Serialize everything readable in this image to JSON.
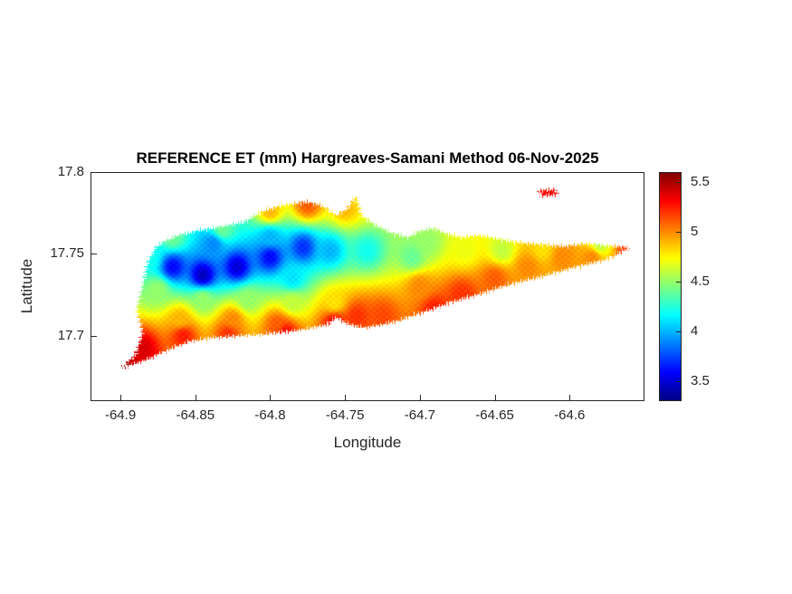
{
  "figure": {
    "title": "REFERENCE ET (mm) Hargreaves-Samani Method  06-Nov-2025",
    "xlabel": "Longitude",
    "ylabel": "Latitude",
    "background": "#ffffff"
  },
  "chart_data": {
    "type": "heatmap",
    "title": "REFERENCE ET (mm) Hargreaves-Samani Method  06-Nov-2025",
    "xlabel": "Longitude",
    "ylabel": "Latitude",
    "xlim": [
      -64.92,
      -64.55
    ],
    "ylim": [
      17.66,
      17.8
    ],
    "x_ticks": [
      {
        "value": -64.9,
        "label": "-64.9"
      },
      {
        "value": -64.85,
        "label": "-64.85"
      },
      {
        "value": -64.8,
        "label": "-64.8"
      },
      {
        "value": -64.75,
        "label": "-64.75"
      },
      {
        "value": -64.7,
        "label": "-64.7"
      },
      {
        "value": -64.65,
        "label": "-64.65"
      },
      {
        "value": -64.6,
        "label": "-64.6"
      }
    ],
    "y_ticks": [
      {
        "value": 17.7,
        "label": "17.7"
      },
      {
        "value": 17.75,
        "label": "17.75"
      },
      {
        "value": 17.8,
        "label": "17.8"
      }
    ],
    "colorbar": {
      "min": 3.3,
      "max": 5.6,
      "ticks": [
        {
          "value": 3.5,
          "label": "3.5"
        },
        {
          "value": 4,
          "label": "4"
        },
        {
          "value": 4.5,
          "label": "4.5"
        },
        {
          "value": 5,
          "label": "5"
        },
        {
          "value": 5.5,
          "label": "5.5"
        }
      ]
    },
    "colormap": {
      "name": "jet",
      "stops": [
        [
          0,
          "#000080"
        ],
        [
          0.125,
          "#0000ff"
        ],
        [
          0.375,
          "#00ffff"
        ],
        [
          0.625,
          "#ffff00"
        ],
        [
          0.875,
          "#ff0000"
        ],
        [
          1,
          "#800000"
        ]
      ]
    },
    "island_polygon": [
      [
        -64.9,
        17.68
      ],
      [
        -64.89,
        17.688
      ],
      [
        -64.885,
        17.7015
      ],
      [
        -64.889,
        17.716
      ],
      [
        -64.885,
        17.731
      ],
      [
        -64.882,
        17.7447
      ],
      [
        -64.876,
        17.7546
      ],
      [
        -64.866,
        17.76
      ],
      [
        -64.85,
        17.764
      ],
      [
        -64.832,
        17.7668
      ],
      [
        -64.817,
        17.7696
      ],
      [
        -64.805,
        17.7762
      ],
      [
        -64.79,
        17.78
      ],
      [
        -64.775,
        17.7817
      ],
      [
        -64.764,
        17.779
      ],
      [
        -64.756,
        17.7734
      ],
      [
        -64.748,
        17.7779
      ],
      [
        -64.743,
        17.7856
      ],
      [
        -64.739,
        17.7734
      ],
      [
        -64.73,
        17.7679
      ],
      [
        -64.719,
        17.7629
      ],
      [
        -64.708,
        17.76
      ],
      [
        -64.701,
        17.7635
      ],
      [
        -64.691,
        17.7657
      ],
      [
        -64.683,
        17.7624
      ],
      [
        -64.672,
        17.76
      ],
      [
        -64.66,
        17.7613
      ],
      [
        -64.647,
        17.759
      ],
      [
        -64.633,
        17.7568
      ],
      [
        -64.618,
        17.7557
      ],
      [
        -64.603,
        17.7546
      ],
      [
        -64.589,
        17.7563
      ],
      [
        -64.577,
        17.7552
      ],
      [
        -64.56,
        17.754
      ],
      [
        -64.574,
        17.7469
      ],
      [
        -64.587,
        17.7441
      ],
      [
        -64.603,
        17.7402
      ],
      [
        -64.618,
        17.7364
      ],
      [
        -64.633,
        17.733
      ],
      [
        -64.648,
        17.7292
      ],
      [
        -64.663,
        17.7247
      ],
      [
        -64.678,
        17.7209
      ],
      [
        -64.691,
        17.7164
      ],
      [
        -64.704,
        17.7126
      ],
      [
        -64.714,
        17.7092
      ],
      [
        -64.727,
        17.7065
      ],
      [
        -64.737,
        17.7048
      ],
      [
        -64.748,
        17.707
      ],
      [
        -64.756,
        17.7115
      ],
      [
        -64.761,
        17.707
      ],
      [
        -64.772,
        17.7048
      ],
      [
        -64.787,
        17.7026
      ],
      [
        -64.805,
        17.7009
      ],
      [
        -64.823,
        17.6998
      ],
      [
        -64.84,
        17.6987
      ],
      [
        -64.854,
        17.6965
      ],
      [
        -64.867,
        17.6921
      ],
      [
        -64.881,
        17.686
      ]
    ],
    "islets": [
      [
        [
          -64.621,
          17.7885
        ],
        [
          -64.61,
          17.7893
        ],
        [
          -64.607,
          17.7863
        ],
        [
          -64.619,
          17.7853
        ]
      ]
    ],
    "samples": [
      [
        -64.865,
        17.742,
        3.6
      ],
      [
        -64.845,
        17.737,
        3.45
      ],
      [
        -64.822,
        17.742,
        3.5
      ],
      [
        -64.8,
        17.748,
        3.6
      ],
      [
        -64.778,
        17.754,
        3.7
      ],
      [
        -64.838,
        17.756,
        3.9
      ],
      [
        -64.8,
        17.76,
        4.0
      ],
      [
        -64.88,
        17.748,
        4.2
      ],
      [
        -64.785,
        17.735,
        4.1
      ],
      [
        -64.76,
        17.752,
        4.0
      ],
      [
        -64.735,
        17.752,
        4.2
      ],
      [
        -64.705,
        17.748,
        4.4
      ],
      [
        -64.865,
        17.76,
        4.4
      ],
      [
        -64.832,
        17.765,
        4.4
      ],
      [
        -64.8,
        17.776,
        4.9
      ],
      [
        -64.775,
        17.78,
        5.1
      ],
      [
        -64.75,
        17.778,
        4.9
      ],
      [
        -64.74,
        17.786,
        4.8
      ],
      [
        -64.875,
        17.728,
        4.5
      ],
      [
        -64.845,
        17.722,
        4.5
      ],
      [
        -64.815,
        17.722,
        4.5
      ],
      [
        -64.785,
        17.72,
        4.6
      ],
      [
        -64.757,
        17.72,
        4.8
      ],
      [
        -64.86,
        17.71,
        4.9
      ],
      [
        -64.825,
        17.71,
        5.0
      ],
      [
        -64.795,
        17.707,
        5.1
      ],
      [
        -64.885,
        17.692,
        5.4
      ],
      [
        -64.858,
        17.7,
        5.25
      ],
      [
        -64.828,
        17.701,
        5.2
      ],
      [
        -64.79,
        17.702,
        5.3
      ],
      [
        -64.902,
        17.681,
        5.55
      ],
      [
        -64.757,
        17.708,
        5.3
      ],
      [
        -64.742,
        17.712,
        5.2
      ],
      [
        -64.725,
        17.712,
        5.15
      ],
      [
        -64.7,
        17.73,
        5.0
      ],
      [
        -64.69,
        17.716,
        5.25
      ],
      [
        -64.672,
        17.725,
        5.2
      ],
      [
        -64.65,
        17.735,
        5.1
      ],
      [
        -64.628,
        17.742,
        5.0
      ],
      [
        -64.605,
        17.748,
        5.0
      ],
      [
        -64.585,
        17.748,
        5.0
      ],
      [
        -64.56,
        17.753,
        5.2
      ],
      [
        -64.695,
        17.757,
        4.5
      ],
      [
        -64.67,
        17.752,
        4.7
      ],
      [
        -64.645,
        17.752,
        4.6
      ],
      [
        -64.58,
        17.7555,
        4.6
      ],
      [
        -64.618,
        17.753,
        4.8
      ],
      [
        -64.613,
        17.787,
        5.3
      ]
    ]
  }
}
